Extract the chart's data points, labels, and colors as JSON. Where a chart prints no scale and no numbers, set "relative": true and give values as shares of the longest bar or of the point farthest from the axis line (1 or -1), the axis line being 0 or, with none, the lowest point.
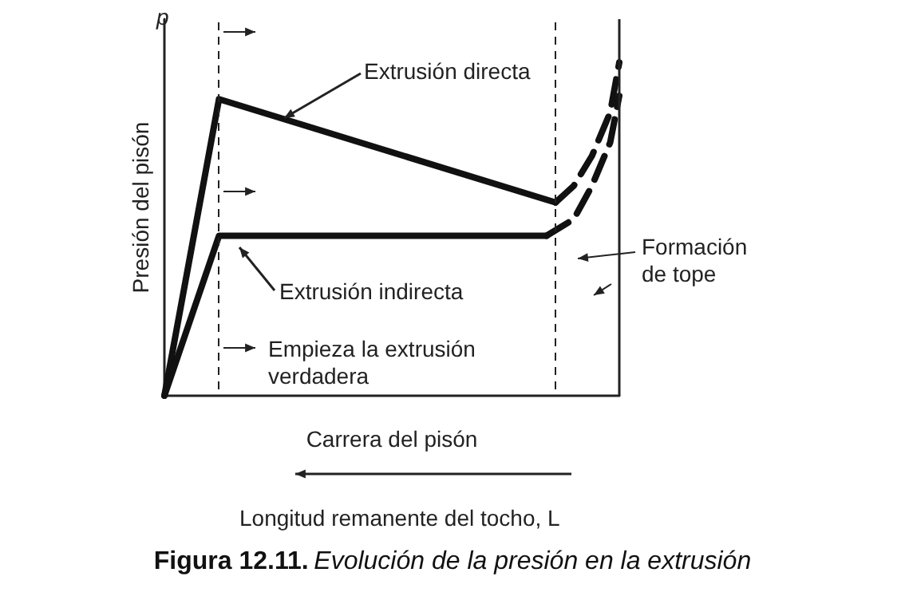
{
  "chart_data": {
    "type": "line",
    "relative": true,
    "title": "Figura 12.11. Evolución de la presión en la extrusión",
    "xlabel": "Carrera del pisón",
    "ylabel": "Presión del pisón",
    "grid": false,
    "marker": "none",
    "categories": [
      null,
      null,
      null,
      null,
      null,
      null,
      null,
      null,
      null,
      null,
      null,
      null,
      null,
      null,
      null,
      null,
      null,
      null,
      null,
      null,
      null,
      null,
      null,
      null,
      null,
      null,
      null,
      null,
      null,
      null,
      null,
      null,
      null,
      null,
      null,
      null,
      null,
      null,
      null,
      null,
      null,
      null,
      null,
      null,
      null,
      null,
      null,
      null,
      null,
      null,
      null
    ],
    "series": [
      {
        "color": "#111111",
        "line_style": "solid",
        "values": [
          0,
          null,
          null,
          null,
          null,
          null,
          0.89,
          null,
          null,
          null,
          null,
          null,
          null,
          null,
          null,
          null,
          null,
          null,
          null,
          null,
          null,
          null,
          null,
          null,
          null,
          null,
          null,
          null,
          null,
          null,
          null,
          null,
          null,
          null,
          null,
          null,
          null,
          null,
          null,
          null,
          null,
          null,
          null,
          0.58,
          null,
          null,
          null,
          null,
          null,
          null,
          null
        ]
      },
      {
        "color": "#111111",
        "line_style": "dashed",
        "values": [
          null,
          null,
          null,
          null,
          null,
          null,
          null,
          null,
          null,
          null,
          null,
          null,
          null,
          null,
          null,
          null,
          null,
          null,
          null,
          null,
          null,
          null,
          null,
          null,
          null,
          null,
          null,
          null,
          null,
          null,
          null,
          null,
          null,
          null,
          null,
          null,
          null,
          null,
          null,
          null,
          null,
          null,
          null,
          0.58,
          null,
          0.63,
          null,
          0.72,
          null,
          0.85,
          1
        ]
      },
      {
        "color": "#111111",
        "line_style": "solid",
        "values": [
          0,
          null,
          null,
          null,
          null,
          null,
          0.48,
          null,
          null,
          null,
          null,
          null,
          null,
          null,
          null,
          null,
          null,
          null,
          null,
          null,
          null,
          null,
          null,
          null,
          null,
          null,
          null,
          null,
          null,
          null,
          null,
          null,
          null,
          null,
          null,
          null,
          null,
          null,
          null,
          null,
          null,
          null,
          0.48,
          null,
          null,
          null,
          null,
          null,
          null,
          null,
          null
        ]
      },
      {
        "color": "#111111",
        "line_style": "dashed",
        "values": [
          null,
          null,
          null,
          null,
          null,
          null,
          null,
          null,
          null,
          null,
          null,
          null,
          null,
          null,
          null,
          null,
          null,
          null,
          null,
          null,
          null,
          null,
          null,
          null,
          null,
          null,
          null,
          null,
          null,
          null,
          null,
          null,
          null,
          null,
          null,
          null,
          null,
          null,
          null,
          null,
          null,
          null,
          0.48,
          null,
          null,
          0.53,
          null,
          0.63,
          null,
          0.76,
          0.9
        ]
      }
    ],
    "annotations": [
      "p",
      "Extrusión directa",
      "Extrusión indirecta",
      "Formación de tope",
      "Empieza la extrusión verdadera",
      "Longitud remanente del tocho, L"
    ]
  }
}
